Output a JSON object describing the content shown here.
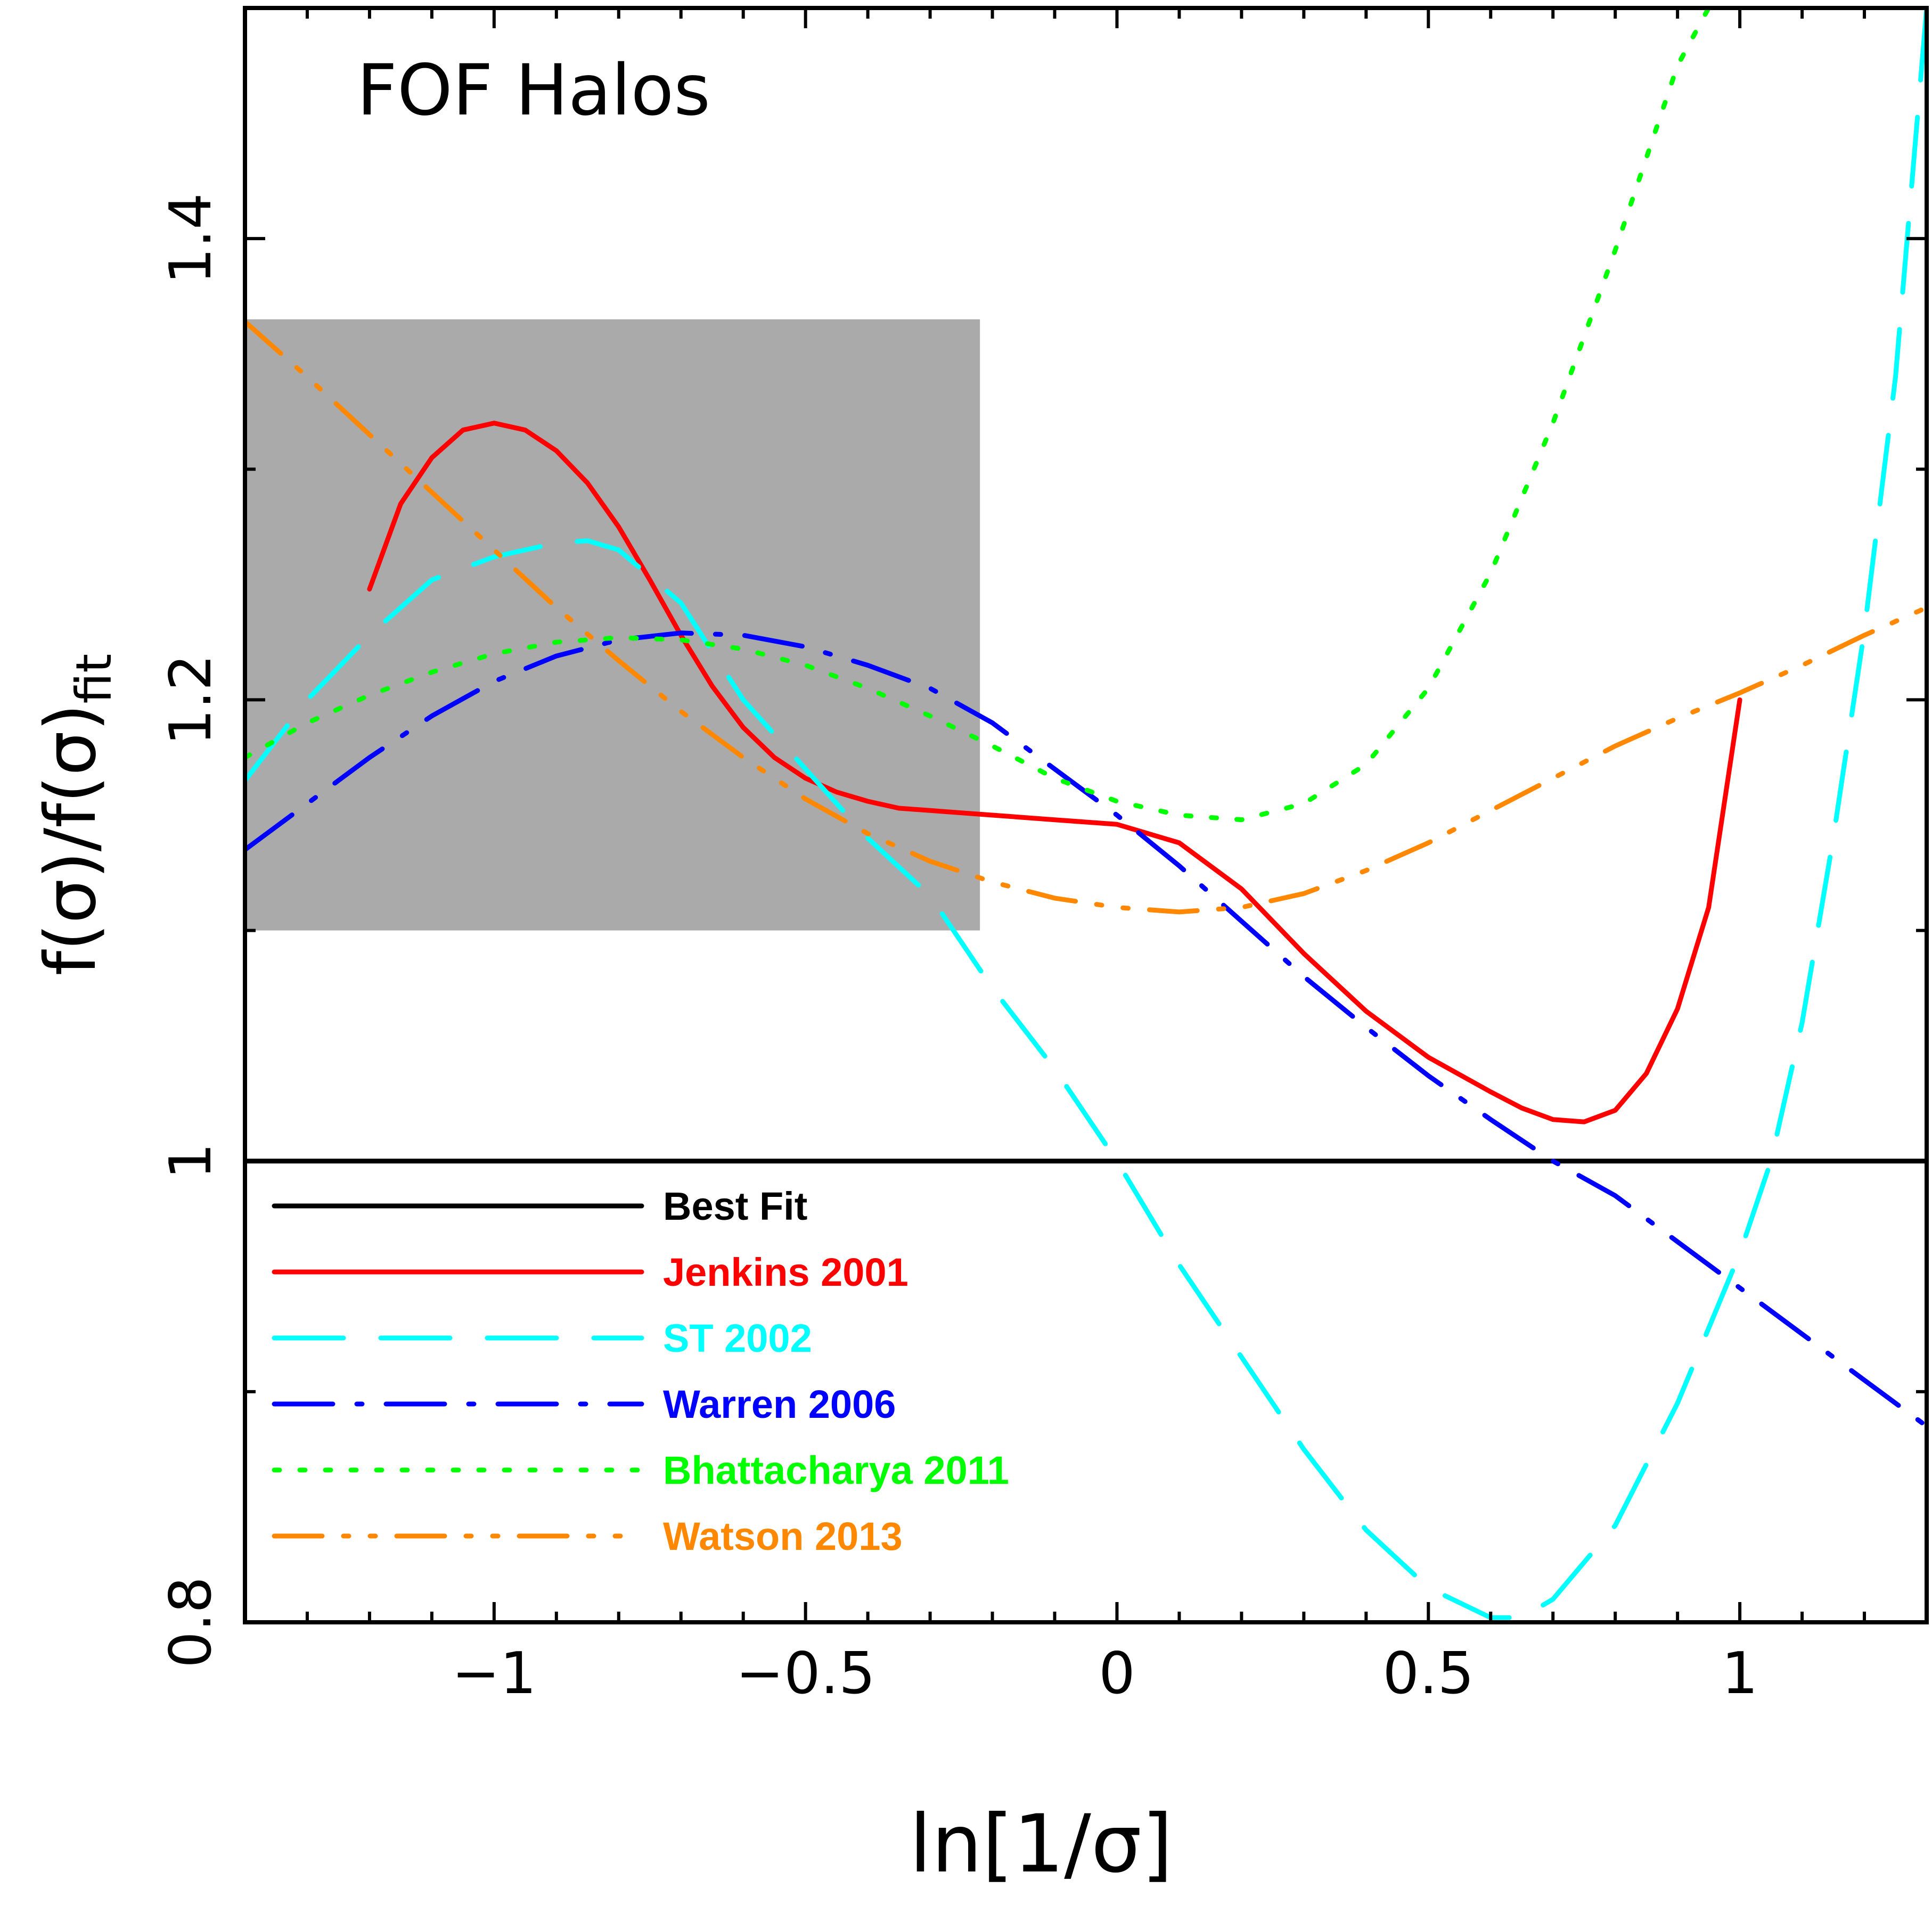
{
  "chart_data": {
    "type": "line",
    "title": "",
    "annotation": "FOF Halos",
    "xlabel": "ln[1/σ]",
    "ylabel": {
      "main": "f(σ)/f(σ)",
      "sub": "fit"
    },
    "xlim": [
      -1.4,
      1.3
    ],
    "ylim": [
      0.8,
      1.5
    ],
    "x_ticks": [
      {
        "value": -1,
        "label": "−1"
      },
      {
        "value": -0.5,
        "label": "−0.5"
      },
      {
        "value": 0,
        "label": "0"
      },
      {
        "value": 0.5,
        "label": "0.5"
      },
      {
        "value": 1,
        "label": "1"
      }
    ],
    "y_ticks": [
      {
        "value": 0.8,
        "label": "0.8"
      },
      {
        "value": 1.0,
        "label": "1"
      },
      {
        "value": 1.2,
        "label": "1.2"
      },
      {
        "value": 1.4,
        "label": "1.4"
      }
    ],
    "x_minor_step": 0.1,
    "y_minor_step": 0.1,
    "grid": false,
    "legend_position": "bottom-left",
    "shaded_region": {
      "x": [
        -1.4,
        -0.22
      ],
      "y": [
        1.1,
        1.365
      ],
      "color": "#aaaaaa"
    },
    "series": [
      {
        "name": "Best Fit",
        "color": "#000000",
        "style": "solid",
        "x": [
          -1.4,
          1.3
        ],
        "y": [
          1.0,
          1.0
        ]
      },
      {
        "name": "Jenkins 2001",
        "color": "#ff0000",
        "style": "solid",
        "x": [
          -1.2,
          -1.15,
          -1.1,
          -1.05,
          -1.0,
          -0.95,
          -0.9,
          -0.85,
          -0.8,
          -0.75,
          -0.7,
          -0.65,
          -0.6,
          -0.55,
          -0.5,
          -0.45,
          -0.4,
          -0.35,
          -0.3,
          -0.25,
          -0.2,
          -0.1,
          0.0,
          0.1,
          0.2,
          0.3,
          0.4,
          0.5,
          0.6,
          0.65,
          0.7,
          0.75,
          0.8,
          0.85,
          0.9,
          0.95,
          1.0
        ],
        "y": [
          1.248,
          1.285,
          1.305,
          1.317,
          1.32,
          1.317,
          1.308,
          1.294,
          1.275,
          1.252,
          1.228,
          1.206,
          1.188,
          1.175,
          1.166,
          1.16,
          1.156,
          1.153,
          1.152,
          1.151,
          1.15,
          1.148,
          1.146,
          1.138,
          1.118,
          1.09,
          1.065,
          1.045,
          1.03,
          1.023,
          1.018,
          1.017,
          1.022,
          1.038,
          1.066,
          1.11,
          1.2
        ]
      },
      {
        "name": "ST 2002",
        "color": "#00ffff",
        "style": "long-dash",
        "x": [
          -1.4,
          -1.3,
          -1.2,
          -1.1,
          -1.0,
          -0.9,
          -0.85,
          -0.8,
          -0.7,
          -0.6,
          -0.5,
          -0.4,
          -0.3,
          -0.2,
          -0.1,
          0.0,
          0.1,
          0.2,
          0.3,
          0.4,
          0.5,
          0.6,
          0.65,
          0.7,
          0.8,
          0.9,
          1.0,
          1.05,
          1.1,
          1.15,
          1.2,
          1.25,
          1.3
        ],
        "y": [
          1.165,
          1.2,
          1.228,
          1.252,
          1.262,
          1.268,
          1.269,
          1.265,
          1.242,
          1.2,
          1.17,
          1.14,
          1.115,
          1.075,
          1.04,
          1.0,
          0.955,
          0.915,
          0.875,
          0.84,
          0.815,
          0.802,
          0.802,
          0.81,
          0.842,
          0.895,
          0.96,
          1.0,
          1.06,
          1.14,
          1.23,
          1.34,
          1.5
        ]
      },
      {
        "name": "Warren 2006",
        "color": "#0000ff",
        "style": "dash-dot",
        "x": [
          -1.4,
          -1.3,
          -1.2,
          -1.1,
          -1.0,
          -0.9,
          -0.8,
          -0.7,
          -0.6,
          -0.5,
          -0.4,
          -0.3,
          -0.2,
          -0.1,
          0.0,
          0.1,
          0.2,
          0.3,
          0.4,
          0.5,
          0.6,
          0.7,
          0.8,
          0.9,
          1.0,
          1.1,
          1.2,
          1.3
        ],
        "y": [
          1.135,
          1.155,
          1.175,
          1.193,
          1.208,
          1.219,
          1.226,
          1.229,
          1.228,
          1.223,
          1.215,
          1.205,
          1.19,
          1.17,
          1.15,
          1.128,
          1.104,
          1.08,
          1.058,
          1.037,
          1.018,
          1.0,
          0.985,
          0.965,
          0.945,
          0.925,
          0.905,
          0.885
        ]
      },
      {
        "name": "Bhattacharya 2011",
        "color": "#00ff00",
        "style": "dotted",
        "x": [
          -1.4,
          -1.3,
          -1.2,
          -1.1,
          -1.0,
          -0.9,
          -0.8,
          -0.7,
          -0.6,
          -0.5,
          -0.4,
          -0.3,
          -0.2,
          -0.1,
          0.0,
          0.1,
          0.2,
          0.3,
          0.4,
          0.5,
          0.6,
          0.7,
          0.8,
          0.85,
          0.9,
          0.95
        ],
        "y": [
          1.175,
          1.19,
          1.202,
          1.212,
          1.22,
          1.225,
          1.227,
          1.226,
          1.222,
          1.215,
          1.205,
          1.193,
          1.18,
          1.166,
          1.156,
          1.15,
          1.148,
          1.155,
          1.172,
          1.205,
          1.255,
          1.32,
          1.395,
          1.435,
          1.475,
          1.5
        ]
      },
      {
        "name": "Watson 2013",
        "color": "#ff8800",
        "style": "dash-dot-dot",
        "x": [
          -1.4,
          -1.3,
          -1.2,
          -1.1,
          -1.0,
          -0.9,
          -0.8,
          -0.7,
          -0.6,
          -0.5,
          -0.4,
          -0.3,
          -0.2,
          -0.1,
          0.0,
          0.1,
          0.2,
          0.3,
          0.4,
          0.5,
          0.6,
          0.7,
          0.8,
          0.9,
          1.0,
          1.1,
          1.2,
          1.3
        ],
        "y": [
          1.364,
          1.34,
          1.315,
          1.29,
          1.265,
          1.24,
          1.217,
          1.195,
          1.175,
          1.157,
          1.142,
          1.13,
          1.121,
          1.114,
          1.11,
          1.108,
          1.11,
          1.116,
          1.126,
          1.138,
          1.152,
          1.166,
          1.18,
          1.192,
          1.203,
          1.215,
          1.228,
          1.24
        ]
      }
    ]
  }
}
